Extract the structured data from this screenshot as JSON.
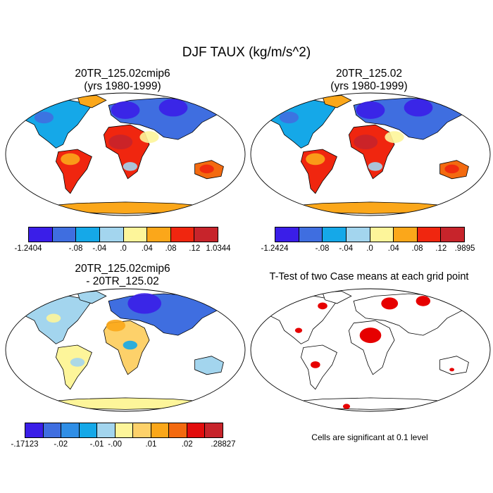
{
  "title": "DJF TAUX (kg/m/s^2)",
  "panels": [
    {
      "title_line1": "20TR_125.02cmip6",
      "title_line2": "(yrs 1980-1999)"
    },
    {
      "title_line1": "20TR_125.02",
      "title_line2": "(yrs 1980-1999)"
    },
    {
      "title_line1": "20TR_125.02cmip6",
      "title_line2": "- 20TR_125.02"
    },
    {
      "title_line1": "T-Test of two Case means at each grid point",
      "title_line2": ""
    }
  ],
  "colorbars": [
    {
      "colors": [
        "#3a1ee8",
        "#3f6ee0",
        "#15a8e8",
        "#a3d5ee",
        "#fdf59a",
        "#fba71a",
        "#f0260f",
        "#c7242b"
      ],
      "labels": [
        "-1.2404",
        "-.08",
        "-.04",
        ".0",
        ".04",
        ".08",
        ".12",
        "1.0344"
      ],
      "label_at": [
        0,
        2,
        3,
        4,
        5,
        6,
        7,
        8
      ]
    },
    {
      "colors": [
        "#3a1ee8",
        "#3f6ee0",
        "#15a8e8",
        "#a3d5ee",
        "#fdf59a",
        "#fba71a",
        "#f0260f",
        "#c7242b"
      ],
      "labels": [
        "-1.2424",
        "-.08",
        "-.04",
        ".0",
        ".04",
        ".08",
        ".12",
        ".9895"
      ],
      "label_at": [
        0,
        2,
        3,
        4,
        5,
        6,
        7,
        8
      ]
    },
    {
      "colors": [
        "#3a1ee8",
        "#3f6ee0",
        "#2f8ee6",
        "#15a8e8",
        "#a3d5ee",
        "#fdf59a",
        "#fdd16a",
        "#fba71a",
        "#f36a10",
        "#e20d0d",
        "#c7242b"
      ],
      "labels": [
        "-.17123",
        "-.02",
        "-.01",
        "-.00",
        ".01",
        ".02",
        ".28827"
      ],
      "label_at": [
        0,
        2,
        4,
        5,
        7,
        9,
        11
      ]
    }
  ],
  "significance_note": "Cells are significant at 0.1 level",
  "colors": {
    "ttest_significant": "#e60000",
    "coastline": "#000000",
    "ocean": "#ffffff"
  }
}
